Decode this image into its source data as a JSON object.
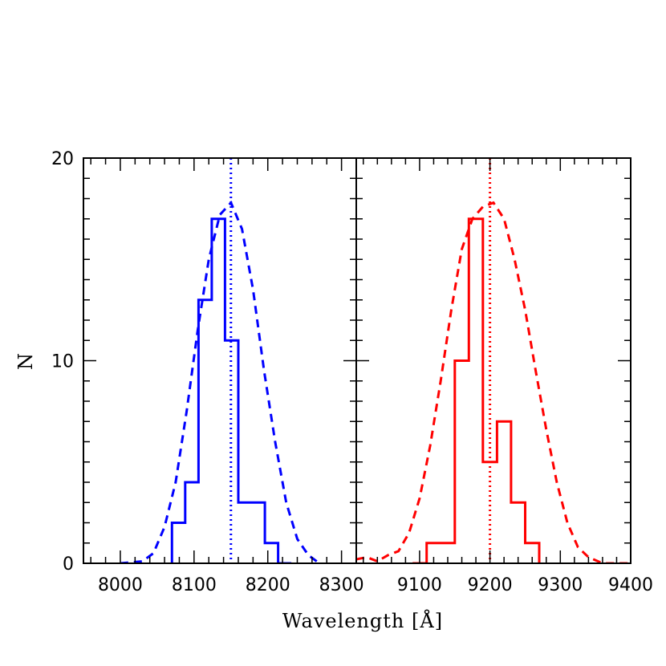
{
  "chart_data": {
    "type": "histogram",
    "ylabel": "N",
    "xlabel": "Wavelength [Å]",
    "ylim": [
      0,
      20
    ],
    "yticks": [
      0,
      10,
      20
    ],
    "yminor_step": 1,
    "panels": [
      {
        "name": "left",
        "color": "#0000ff",
        "xlim": [
          7950,
          8320
        ],
        "xticks": [
          8000,
          8100,
          8200,
          8300
        ],
        "xminor_step": 20,
        "histogram": {
          "edges": [
            8070,
            8088,
            8106,
            8124,
            8142,
            8160,
            8178,
            8196,
            8214,
            8232
          ],
          "counts": [
            2,
            4,
            13,
            17,
            11,
            3,
            3,
            1,
            0
          ]
        },
        "model_curve": {
          "x": [
            8000,
            8030,
            8045,
            8060,
            8075,
            8090,
            8105,
            8120,
            8135,
            8150,
            8165,
            8180,
            8195,
            8210,
            8225,
            8240,
            8255,
            8270
          ],
          "y": [
            0,
            0.1,
            0.5,
            1.8,
            4.0,
            7.5,
            11.5,
            15.0,
            17.2,
            17.8,
            16.5,
            13.5,
            9.5,
            6.0,
            3.0,
            1.2,
            0.4,
            0
          ]
        },
        "reference_line": 8150
      },
      {
        "name": "right",
        "color": "#ff0000",
        "xlim": [
          9010,
          9400
        ],
        "xticks": [
          9100,
          9200,
          9300,
          9400
        ],
        "xminor_step": 20,
        "histogram": {
          "edges": [
            9090,
            9110,
            9150,
            9170,
            9190,
            9210,
            9230,
            9250,
            9270
          ],
          "counts": [
            0,
            1,
            10,
            17,
            5,
            7,
            3,
            1
          ]
        },
        "model_curve": {
          "x": [
            9010,
            9025,
            9040,
            9055,
            9070,
            9085,
            9100,
            9115,
            9130,
            9145,
            9160,
            9175,
            9190,
            9205,
            9220,
            9235,
            9250,
            9265,
            9280,
            9295,
            9310,
            9325,
            9340,
            9360,
            9380,
            9400
          ],
          "y": [
            0.2,
            0.3,
            0.1,
            0.4,
            0.6,
            1.5,
            3.2,
            5.8,
            9.0,
            12.5,
            15.5,
            17.0,
            17.6,
            17.8,
            17.0,
            15.0,
            12.5,
            9.5,
            6.6,
            4.0,
            2.0,
            0.8,
            0.3,
            0,
            0,
            0
          ]
        },
        "reference_line": 9200
      }
    ]
  }
}
